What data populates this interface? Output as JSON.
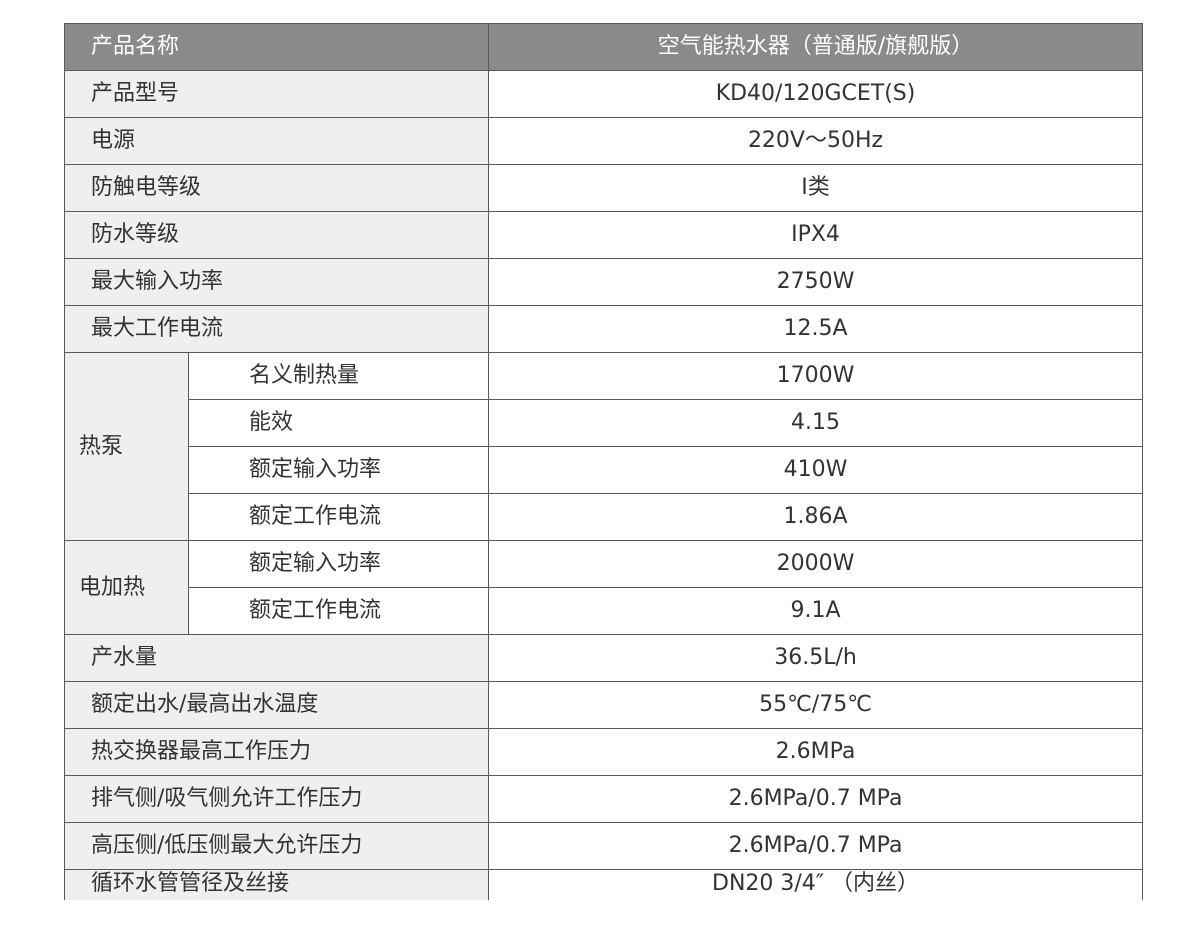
{
  "header": {
    "name_label": "产品名称",
    "name_value": "空气能热水器（普通版/旗舰版）"
  },
  "rows": [
    {
      "label": "产品型号",
      "value": "KD40/120GCET(S)"
    },
    {
      "label": "电源",
      "value": "220V～50Hz"
    },
    {
      "label": "防触电等级",
      "value": "Ⅰ类"
    },
    {
      "label": "防水等级",
      "value": "IPX4"
    },
    {
      "label": "最大输入功率",
      "value": "2750W"
    },
    {
      "label": "最大工作电流",
      "value": "12.5A"
    }
  ],
  "heat_pump": {
    "group": "热泵",
    "items": [
      {
        "label": "名义制热量",
        "value": "1700W"
      },
      {
        "label": "能效",
        "value": "4.15"
      },
      {
        "label": "额定输入功率",
        "value": "410W"
      },
      {
        "label": "额定工作电流",
        "value": "1.86A"
      }
    ]
  },
  "electric_heating": {
    "group": "电加热",
    "items": [
      {
        "label": "额定输入功率",
        "value": "2000W"
      },
      {
        "label": "额定工作电流",
        "value": "9.1A"
      }
    ]
  },
  "rows2": [
    {
      "label": "产水量",
      "value": "36.5L/h"
    },
    {
      "label": "额定出水/最高出水温度",
      "value": "55℃/75℃"
    },
    {
      "label": "热交换器最高工作压力",
      "value": "2.6MPa"
    },
    {
      "label": "排气侧/吸气侧允许工作压力",
      "value": "2.6MPa/0.7 MPa"
    },
    {
      "label": "高压侧/低压侧最大允许压力",
      "value": "2.6MPa/0.7 MPa"
    },
    {
      "label": "循环水管管径及丝接",
      "value": "DN20  3/4″ （内丝）"
    }
  ]
}
